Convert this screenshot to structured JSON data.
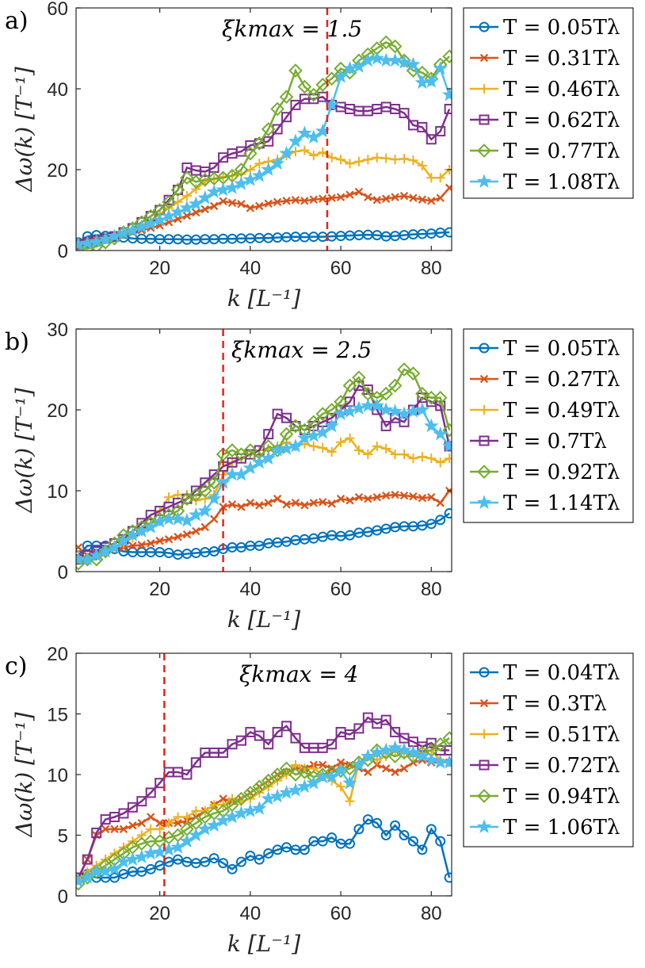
{
  "colors": {
    "s1": "#0072BD",
    "s2": "#D95319",
    "s3": "#EDB120",
    "s4": "#7E2F8E",
    "s5": "#77AC30",
    "s6": "#4DBEEE",
    "cutoff": "#E8231A"
  },
  "chart_data": [
    {
      "type": "line",
      "panel": "a)",
      "annotation": "ξk_max = 1.5",
      "annotation_text": "ξkmax = 1.5",
      "xlabel": "k [L⁻¹]",
      "ylabel": "Δω(k) [T⁻¹]",
      "xlim": [
        1.5,
        84.5
      ],
      "ylim": [
        0,
        60
      ],
      "xticks": [
        20,
        40,
        60,
        80
      ],
      "yticks": [
        0,
        20,
        40,
        60
      ],
      "cutoff_k": 57,
      "grid": false,
      "legend_position": "outside-right",
      "x": [
        2,
        4,
        6,
        8,
        10,
        12,
        14,
        16,
        18,
        20,
        22,
        24,
        26,
        28,
        30,
        32,
        34,
        36,
        38,
        40,
        42,
        44,
        46,
        48,
        50,
        52,
        54,
        56,
        58,
        60,
        62,
        64,
        66,
        68,
        70,
        72,
        74,
        76,
        78,
        80,
        82,
        84
      ],
      "series": [
        {
          "name": "T = 0.05Tλ",
          "marker": "circle",
          "values": [
            2,
            3.5,
            3.8,
            3.6,
            3.4,
            3.2,
            3,
            2.9,
            2.9,
            2.8,
            2.8,
            2.8,
            2.7,
            2.7,
            2.8,
            2.8,
            2.9,
            2.9,
            3,
            3,
            3.1,
            3.1,
            3.2,
            3.3,
            3.4,
            3.3,
            3.4,
            3.4,
            3.5,
            3.6,
            3.7,
            3.8,
            3.9,
            3.8,
            3.5,
            3.6,
            3.8,
            4,
            4.1,
            4.2,
            4.4,
            4.5
          ]
        },
        {
          "name": "T = 0.31Tλ",
          "marker": "x",
          "values": [
            2,
            2.5,
            3,
            3.2,
            3.6,
            4,
            4.5,
            5,
            5.6,
            6.2,
            7,
            7.8,
            8.6,
            9.4,
            10.2,
            11,
            12.2,
            11.8,
            11.5,
            10.5,
            11,
            11.6,
            12,
            12.3,
            12.5,
            12.3,
            12.6,
            12.8,
            13,
            13.2,
            13.8,
            14.5,
            13.2,
            12.5,
            12.8,
            13.2,
            13.5,
            13,
            12.6,
            12.3,
            13,
            15.5
          ]
        },
        {
          "name": "T = 0.46Tλ",
          "marker": "plus",
          "values": [
            1.5,
            1.8,
            2.2,
            2.8,
            3.5,
            4.3,
            5.2,
            6.2,
            7.5,
            9,
            10.5,
            12,
            13.5,
            15.2,
            17,
            17.6,
            18.2,
            18.5,
            18.9,
            20,
            21.5,
            22,
            22.5,
            23.5,
            24.5,
            24.8,
            23.5,
            24.3,
            23,
            22.5,
            21.5,
            22,
            22.5,
            23,
            22.8,
            22.5,
            22.7,
            22.3,
            21,
            18,
            18,
            20
          ]
        },
        {
          "name": "T = 0.62Tλ",
          "marker": "square",
          "values": [
            1.5,
            2,
            2.5,
            3,
            3.5,
            4.5,
            5.5,
            7,
            8.5,
            10,
            12.5,
            15,
            20.5,
            19.8,
            19.5,
            20.5,
            23,
            24,
            24.5,
            26,
            26.5,
            27,
            30,
            33,
            36,
            37.5,
            37.5,
            38,
            36,
            35.5,
            35,
            34.5,
            34.5,
            35,
            35.5,
            35,
            34,
            31,
            30.5,
            27.5,
            29.5,
            35
          ]
        },
        {
          "name": "T = 0.77Tλ",
          "marker": "diamond",
          "values": [
            0.5,
            0.5,
            1,
            2,
            3,
            4.5,
            5.5,
            7,
            8.5,
            10,
            12,
            15,
            18,
            17,
            17.5,
            17.8,
            18,
            18.5,
            20,
            24,
            26.5,
            30,
            35,
            38,
            44.5,
            40.5,
            38.5,
            41,
            42.5,
            45,
            44,
            47,
            48.5,
            50,
            51.5,
            50.5,
            47,
            44.5,
            44,
            42.5,
            46,
            48
          ]
        },
        {
          "name": "T = 1.08Tλ",
          "marker": "star",
          "values": [
            1.5,
            1.8,
            2.2,
            2.8,
            3.5,
            4.3,
            5,
            5.8,
            6.6,
            7.5,
            8.5,
            9.5,
            10.5,
            11.5,
            13,
            14.5,
            15,
            15.5,
            16.5,
            17.5,
            18.5,
            20,
            21.5,
            24,
            27,
            29,
            28,
            29.5,
            36,
            43,
            45,
            45.5,
            47,
            47.5,
            47,
            47,
            46.5,
            46,
            41.5,
            41.8,
            45,
            38.5
          ]
        }
      ]
    },
    {
      "type": "line",
      "panel": "b)",
      "annotation": "ξk_max = 2.5",
      "annotation_text": "ξkmax = 2.5",
      "xlabel": "k [L⁻¹]",
      "ylabel": "Δω(k) [T⁻¹]",
      "xlim": [
        1.5,
        84.5
      ],
      "ylim": [
        0,
        30
      ],
      "xticks": [
        20,
        40,
        60,
        80
      ],
      "yticks": [
        0,
        10,
        20,
        30
      ],
      "cutoff_k": 34,
      "grid": false,
      "legend_position": "outside-right",
      "x": [
        2,
        4,
        6,
        8,
        10,
        12,
        14,
        16,
        18,
        20,
        22,
        24,
        26,
        28,
        30,
        32,
        34,
        36,
        38,
        40,
        42,
        44,
        46,
        48,
        50,
        52,
        54,
        56,
        58,
        60,
        62,
        64,
        66,
        68,
        70,
        72,
        74,
        76,
        78,
        80,
        82,
        84
      ],
      "series": [
        {
          "name": "T = 0.05Tλ",
          "marker": "circle",
          "values": [
            2,
            3.2,
            3.2,
            3.2,
            2.8,
            2.5,
            2.4,
            2.4,
            2.4,
            2.4,
            2.3,
            2.1,
            2.2,
            2.3,
            2.4,
            2.5,
            2.8,
            3,
            3,
            3.2,
            3.2,
            3.5,
            3.6,
            3.7,
            3.9,
            4,
            4.1,
            4.3,
            4.5,
            4.4,
            4.5,
            4.8,
            4.9,
            5.1,
            5.3,
            5.5,
            5.6,
            5.6,
            5.7,
            5.9,
            6.4,
            7.2
          ]
        },
        {
          "name": "T = 0.27Tλ",
          "marker": "x",
          "values": [
            3,
            2,
            2.2,
            2.5,
            2.8,
            3,
            3.2,
            3.3,
            3.5,
            3.8,
            4,
            4.3,
            4.6,
            5,
            5.5,
            6.5,
            8,
            8.3,
            8,
            8.5,
            8.2,
            8.5,
            9,
            8.3,
            8.5,
            8.2,
            8.5,
            8.6,
            8.4,
            9,
            8.8,
            9.2,
            9,
            9.2,
            9.4,
            9.5,
            9.4,
            9.3,
            9.1,
            9.2,
            8.5,
            10
          ]
        },
        {
          "name": "T = 0.49Tλ",
          "marker": "plus",
          "values": [
            2,
            1.5,
            2,
            2.5,
            3,
            3.5,
            4.2,
            5,
            6,
            7.5,
            9.2,
            9.5,
            9.5,
            8.8,
            9,
            9.5,
            12,
            13.5,
            14,
            14.5,
            15,
            15.2,
            15.5,
            16,
            15.5,
            15.8,
            15.5,
            15.3,
            14.8,
            16,
            16.5,
            15,
            14.5,
            15.5,
            15.2,
            14.5,
            14.5,
            14,
            14.2,
            14,
            13.5,
            14
          ]
        },
        {
          "name": "T = 0.7Tλ",
          "marker": "square",
          "values": [
            1.5,
            2,
            2.5,
            3,
            3.5,
            4,
            5,
            6,
            7,
            7.5,
            8,
            8.5,
            9,
            10,
            11,
            12,
            13,
            13.5,
            14,
            14.5,
            15,
            17,
            19.5,
            19,
            18,
            17.5,
            18,
            18.5,
            19,
            20,
            21,
            23,
            22.5,
            20,
            18,
            19,
            18.5,
            20,
            21.5,
            21,
            20.5,
            15.5
          ]
        },
        {
          "name": "T = 0.92Tλ",
          "marker": "diamond",
          "values": [
            1,
            1.5,
            1.5,
            2.5,
            3.5,
            4.5,
            5,
            5.5,
            6,
            6.5,
            7,
            7.5,
            9,
            9.5,
            10,
            11,
            14.5,
            15,
            14.5,
            15,
            14,
            15.5,
            15,
            17,
            18,
            17.5,
            18.5,
            19.5,
            20,
            21,
            23,
            24,
            22,
            21.5,
            22,
            23,
            25,
            24.5,
            22,
            21.5,
            21.5,
            17.5
          ]
        },
        {
          "name": "T = 1.14Tλ",
          "marker": "star",
          "values": [
            1.5,
            1.5,
            2,
            2.5,
            3,
            3.8,
            4.5,
            5,
            5.5,
            6.2,
            6.5,
            6.5,
            6.3,
            7,
            7.5,
            9,
            11,
            12,
            12,
            12.8,
            13.5,
            14,
            15,
            15.2,
            15.5,
            16.5,
            16.8,
            17.2,
            18,
            19.5,
            19.8,
            20.2,
            20.5,
            20.5,
            20,
            19.8,
            19.5,
            19.8,
            20,
            18,
            17,
            15.5
          ]
        }
      ]
    },
    {
      "type": "line",
      "panel": "c)",
      "annotation": "ξk_max = 4",
      "annotation_text": "ξkmax = 4",
      "xlabel": "k [L⁻¹]",
      "ylabel": "Δω(k) [T⁻¹]",
      "xlim": [
        1.5,
        84.5
      ],
      "ylim": [
        0,
        20
      ],
      "xticks": [
        20,
        40,
        60,
        80
      ],
      "yticks": [
        0,
        5,
        10,
        15,
        20
      ],
      "cutoff_k": 21,
      "grid": false,
      "legend_position": "outside-right",
      "x": [
        2,
        4,
        6,
        8,
        10,
        12,
        14,
        16,
        18,
        20,
        22,
        24,
        26,
        28,
        30,
        32,
        34,
        36,
        38,
        40,
        42,
        44,
        46,
        48,
        50,
        52,
        54,
        56,
        58,
        60,
        62,
        64,
        66,
        68,
        70,
        72,
        74,
        76,
        78,
        80,
        82,
        84
      ],
      "series": [
        {
          "name": "T = 0.04Tλ",
          "marker": "circle",
          "values": [
            1.5,
            1.8,
            1.5,
            1.5,
            1.5,
            1.8,
            2,
            2,
            2.2,
            2.5,
            2.8,
            3,
            2.8,
            2.7,
            2.8,
            3.1,
            2.7,
            2.2,
            2.8,
            3.3,
            3,
            3.5,
            3.8,
            4,
            3.8,
            3.8,
            4.5,
            4.5,
            4.8,
            4.3,
            4.3,
            5.5,
            6.3,
            6,
            5,
            5.8,
            5,
            4.5,
            3.8,
            5.5,
            4.5,
            1.5
          ]
        },
        {
          "name": "T = 0.3Tλ",
          "marker": "x",
          "values": [
            1.5,
            3,
            5,
            5.5,
            5.5,
            5.5,
            5.8,
            6,
            6.5,
            6,
            6,
            6,
            6.2,
            6.5,
            7,
            7.5,
            8,
            7.8,
            8,
            8.5,
            9,
            9.5,
            10,
            10.2,
            10.5,
            10.5,
            10.8,
            10.8,
            10.5,
            11,
            10.8,
            10.5,
            10.2,
            10.8,
            10.5,
            10.2,
            10.5,
            11,
            11.2,
            11,
            11,
            11
          ]
        },
        {
          "name": "T = 0.51Tλ",
          "marker": "plus",
          "values": [
            1.5,
            2,
            2.5,
            3,
            3.5,
            4,
            4.5,
            5,
            5.5,
            5.5,
            6,
            6.5,
            6.5,
            7,
            7,
            7.5,
            7.5,
            8,
            7.8,
            8,
            8.5,
            9,
            9.5,
            10,
            10.8,
            10.5,
            10.5,
            10,
            9.5,
            9,
            7.8,
            11,
            11.5,
            11.2,
            11.5,
            12,
            11.8,
            11.5,
            11.8,
            12,
            11.2,
            11
          ]
        },
        {
          "name": "T = 0.72Tλ",
          "marker": "square",
          "values": [
            1.5,
            3,
            5.2,
            6.3,
            6.5,
            6.8,
            7.3,
            7.8,
            8.5,
            9.3,
            10.2,
            10.2,
            10,
            11,
            11.8,
            11.8,
            11.8,
            12.5,
            12.8,
            13.5,
            13.2,
            12.5,
            13.5,
            14,
            13,
            12.2,
            12.2,
            12.2,
            12.5,
            13.5,
            13.3,
            13.8,
            14.7,
            14.2,
            14.5,
            13.5,
            13,
            12.7,
            12.3,
            12.6,
            12,
            12
          ]
        },
        {
          "name": "T = 0.94Tλ",
          "marker": "diamond",
          "values": [
            1,
            1.5,
            2,
            2.5,
            3,
            3.5,
            4,
            4.3,
            4.5,
            4.5,
            4.8,
            5,
            5.5,
            6,
            6.5,
            6.8,
            7,
            7.5,
            8,
            8.5,
            9,
            9.5,
            10,
            10.5,
            10,
            10.2,
            9.8,
            10,
            10.2,
            10.3,
            10.5,
            11,
            11.2,
            12,
            11.8,
            11.5,
            11.8,
            11.5,
            11.8,
            12,
            12.5,
            13
          ]
        },
        {
          "name": "T = 1.06Tλ",
          "marker": "star",
          "values": [
            1.2,
            1.5,
            2,
            2,
            2.2,
            2.8,
            3,
            3.2,
            3.5,
            3.6,
            3.8,
            4,
            4.5,
            5,
            5.5,
            5.8,
            6.2,
            6.5,
            6.8,
            7,
            7.2,
            8,
            8.2,
            8.5,
            8.7,
            9,
            9.3,
            9.8,
            9.8,
            10.3,
            9.3,
            10.8,
            11.5,
            11.8,
            12,
            12.2,
            12,
            11.8,
            11.5,
            11.2,
            11,
            11
          ]
        }
      ]
    }
  ]
}
